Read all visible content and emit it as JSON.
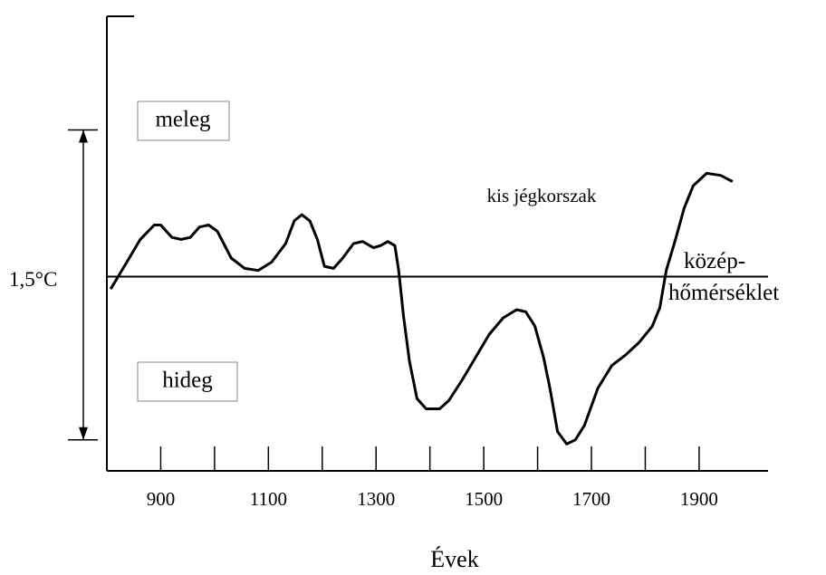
{
  "chart_data": {
    "type": "line",
    "x_label": "Évek",
    "color": "#000000",
    "x": [
      807,
      837,
      862,
      888,
      900,
      921,
      938,
      955,
      972,
      989,
      1005,
      1031,
      1056,
      1081,
      1106,
      1132,
      1148,
      1162,
      1177,
      1191,
      1204,
      1221,
      1238,
      1258,
      1275,
      1295,
      1308,
      1322,
      1335,
      1342,
      1351,
      1362,
      1376,
      1393,
      1418,
      1435,
      1460,
      1485,
      1510,
      1536,
      1561,
      1578,
      1595,
      1611,
      1623,
      1637,
      1654,
      1670,
      1687,
      1712,
      1738,
      1763,
      1788,
      1813,
      1827,
      1839,
      1856,
      1872,
      1889,
      1914,
      1940,
      1962
    ],
    "values": [
      -0.06,
      0.07,
      0.18,
      0.25,
      0.25,
      0.19,
      0.18,
      0.19,
      0.24,
      0.25,
      0.22,
      0.09,
      0.04,
      0.03,
      0.07,
      0.16,
      0.27,
      0.3,
      0.27,
      0.18,
      0.05,
      0.04,
      0.09,
      0.16,
      0.17,
      0.14,
      0.15,
      0.17,
      0.15,
      0.03,
      -0.19,
      -0.41,
      -0.59,
      -0.64,
      -0.64,
      -0.6,
      -0.5,
      -0.39,
      -0.28,
      -0.2,
      -0.16,
      -0.17,
      -0.24,
      -0.39,
      -0.54,
      -0.75,
      -0.81,
      -0.79,
      -0.72,
      -0.54,
      -0.43,
      -0.38,
      -0.32,
      -0.24,
      -0.15,
      0.03,
      0.18,
      0.33,
      0.44,
      0.5,
      0.49,
      0.46
    ],
    "xlim": [
      800,
      2028
    ],
    "xticks": [
      900,
      1100,
      1300,
      1500,
      1700,
      1900
    ],
    "minor_xticks": [
      1000,
      1200,
      1400,
      1600,
      1800
    ],
    "ylim": [
      -0.94,
      1.26
    ],
    "reference_line": {
      "value": 0,
      "label": [
        "közép-",
        "hőmérséklet"
      ]
    },
    "bracket": {
      "label": "1,5°C",
      "from": -0.79,
      "to": 0.71
    },
    "boxes": [
      "meleg",
      "hideg"
    ],
    "annotation": "kis jégkorszak"
  }
}
